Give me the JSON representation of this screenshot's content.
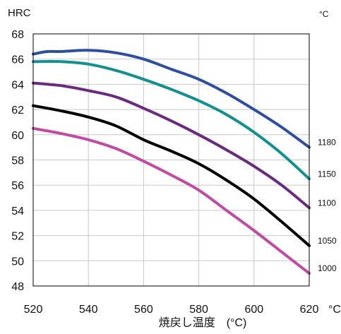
{
  "chart_data": {
    "type": "line",
    "ylabel": "HRC",
    "y_unit_top_right": "°C",
    "xlabel": "焼戻し温度　(°C)",
    "x_unit_tick": "°C",
    "xlim": [
      520,
      620
    ],
    "ylim": [
      48,
      68
    ],
    "x_ticks": [
      520,
      540,
      560,
      580,
      600,
      620
    ],
    "y_ticks": [
      48,
      50,
      52,
      54,
      56,
      58,
      60,
      62,
      64,
      66,
      68
    ],
    "grid": true,
    "series": [
      {
        "name": "1180",
        "color": "#2e4fa0",
        "x": [
          520,
          525,
          530,
          540,
          550,
          560,
          570,
          580,
          590,
          600,
          610,
          620
        ],
        "y": [
          66.4,
          66.6,
          66.6,
          66.7,
          66.5,
          66.0,
          65.2,
          64.4,
          63.3,
          62.0,
          60.6,
          59.0
        ]
      },
      {
        "name": "1150",
        "color": "#13908f",
        "x": [
          520,
          530,
          540,
          550,
          560,
          570,
          580,
          590,
          600,
          610,
          620
        ],
        "y": [
          65.8,
          65.8,
          65.6,
          65.1,
          64.4,
          63.6,
          62.7,
          61.6,
          60.2,
          58.5,
          56.5
        ]
      },
      {
        "name": "1100",
        "color": "#6b2a7f",
        "x": [
          520,
          530,
          540,
          550,
          560,
          570,
          580,
          590,
          600,
          610,
          620
        ],
        "y": [
          64.1,
          63.9,
          63.5,
          63.0,
          62.1,
          61.1,
          60.0,
          58.8,
          57.5,
          56.0,
          54.2
        ]
      },
      {
        "name": "1050",
        "color": "#000000",
        "x": [
          520,
          530,
          540,
          550,
          560,
          570,
          580,
          590,
          600,
          610,
          620
        ],
        "y": [
          62.3,
          61.9,
          61.4,
          60.7,
          59.6,
          58.7,
          57.7,
          56.4,
          54.9,
          53.1,
          51.2
        ]
      },
      {
        "name": "1000",
        "color": "#c04aa4",
        "x": [
          520,
          530,
          540,
          550,
          560,
          570,
          580,
          590,
          600,
          610,
          620
        ],
        "y": [
          60.5,
          60.1,
          59.6,
          58.9,
          57.9,
          56.8,
          55.6,
          54.0,
          52.4,
          50.7,
          49.0
        ]
      }
    ]
  }
}
